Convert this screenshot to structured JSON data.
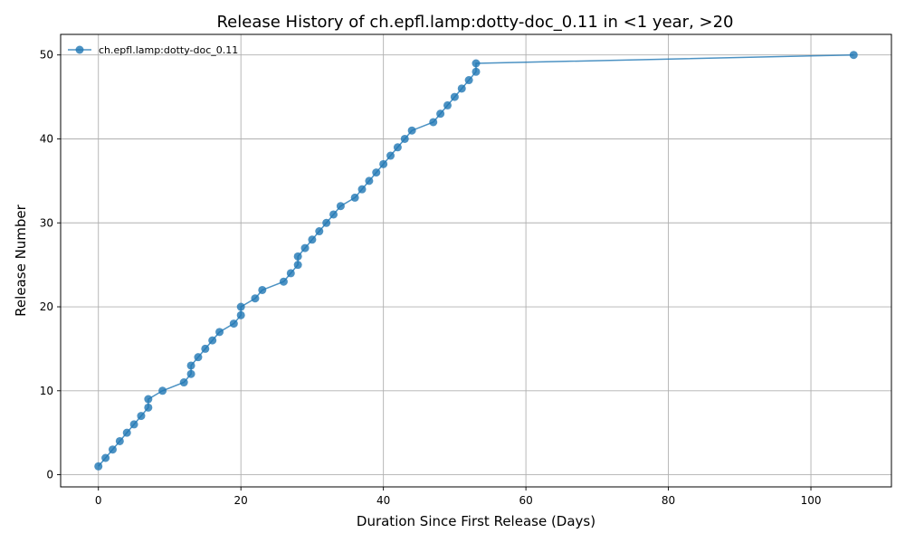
{
  "chart_data": {
    "type": "line",
    "title": "Release History of ch.epfl.lamp:dotty-doc_0.11 in <1 year, >20",
    "xlabel": "Duration Since First Release (Days)",
    "ylabel": "Release Number",
    "xlim": [
      -5.3,
      111.3
    ],
    "ylim": [
      -1.45,
      52.45
    ],
    "xticks": [
      0,
      20,
      40,
      60,
      80,
      100
    ],
    "yticks": [
      0,
      10,
      20,
      30,
      40,
      50
    ],
    "grid": true,
    "legend_position": "top-left",
    "series": [
      {
        "name": "ch.epfl.lamp:dotty-doc_0.11",
        "color": "#1f77b4",
        "marker": "circle",
        "x": [
          0,
          1,
          2,
          3,
          4,
          5,
          6,
          7,
          7,
          9,
          12,
          13,
          13,
          14,
          15,
          16,
          17,
          19,
          20,
          20,
          22,
          23,
          26,
          27,
          28,
          28,
          29,
          30,
          31,
          32,
          33,
          34,
          36,
          37,
          38,
          39,
          40,
          41,
          42,
          43,
          44,
          47,
          48,
          49,
          50,
          51,
          52,
          53,
          53,
          106
        ],
        "y": [
          1,
          2,
          3,
          4,
          5,
          6,
          7,
          8,
          9,
          10,
          11,
          12,
          13,
          14,
          15,
          16,
          17,
          18,
          19,
          20,
          21,
          22,
          23,
          24,
          25,
          26,
          27,
          28,
          29,
          30,
          31,
          32,
          33,
          34,
          35,
          36,
          37,
          38,
          39,
          40,
          41,
          42,
          43,
          44,
          45,
          46,
          47,
          48,
          49,
          50
        ]
      }
    ]
  }
}
